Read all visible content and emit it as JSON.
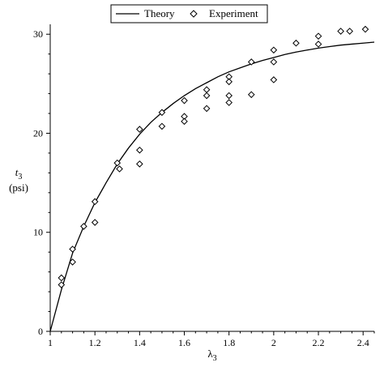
{
  "chart_data": {
    "type": "scatter",
    "xlabel": "λ",
    "xlabel_sub": "3",
    "ylabel": "t",
    "ylabel_sub": "3",
    "ylabel_unit": "(psi)",
    "xlim": [
      1.0,
      2.45
    ],
    "ylim": [
      0,
      31
    ],
    "x_ticks": [
      1,
      1.2,
      1.4,
      1.6,
      1.8,
      2,
      2.2,
      2.4
    ],
    "x_tick_labels": [
      "1",
      "1.2",
      "1.4",
      "1.6",
      "1.8",
      "2",
      "2.2",
      "2.4"
    ],
    "y_ticks": [
      0,
      10,
      20,
      30
    ],
    "y_tick_labels": [
      "0",
      "10",
      "20",
      "30"
    ],
    "grid": false,
    "legend_position": "top-center",
    "series": [
      {
        "name": "Theory",
        "kind": "line",
        "color": "#000000",
        "points": [
          [
            1.0,
            0.0
          ],
          [
            1.05,
            4.2
          ],
          [
            1.1,
            7.9
          ],
          [
            1.15,
            10.6
          ],
          [
            1.2,
            13.0
          ],
          [
            1.25,
            15.0
          ],
          [
            1.3,
            16.9
          ],
          [
            1.35,
            18.5
          ],
          [
            1.4,
            19.9
          ],
          [
            1.45,
            21.1
          ],
          [
            1.5,
            22.1
          ],
          [
            1.55,
            23.0
          ],
          [
            1.6,
            23.8
          ],
          [
            1.65,
            24.5
          ],
          [
            1.7,
            25.1
          ],
          [
            1.75,
            25.7
          ],
          [
            1.8,
            26.2
          ],
          [
            1.85,
            26.6
          ],
          [
            1.9,
            27.0
          ],
          [
            1.95,
            27.35
          ],
          [
            2.0,
            27.65
          ],
          [
            2.05,
            27.95
          ],
          [
            2.1,
            28.2
          ],
          [
            2.15,
            28.4
          ],
          [
            2.2,
            28.6
          ],
          [
            2.25,
            28.75
          ],
          [
            2.3,
            28.9
          ],
          [
            2.35,
            29.0
          ],
          [
            2.4,
            29.1
          ],
          [
            2.45,
            29.2
          ]
        ]
      },
      {
        "name": "Experiment",
        "kind": "scatter",
        "marker": "diamond",
        "color": "#000000",
        "points": [
          [
            1.05,
            5.4
          ],
          [
            1.05,
            4.7
          ],
          [
            1.1,
            8.3
          ],
          [
            1.1,
            7.0
          ],
          [
            1.15,
            10.6
          ],
          [
            1.2,
            13.1
          ],
          [
            1.2,
            11.0
          ],
          [
            1.3,
            17.0
          ],
          [
            1.31,
            16.4
          ],
          [
            1.4,
            20.4
          ],
          [
            1.4,
            18.3
          ],
          [
            1.4,
            16.9
          ],
          [
            1.5,
            22.1
          ],
          [
            1.5,
            20.7
          ],
          [
            1.6,
            23.3
          ],
          [
            1.6,
            21.7
          ],
          [
            1.6,
            21.2
          ],
          [
            1.7,
            24.4
          ],
          [
            1.7,
            23.8
          ],
          [
            1.7,
            22.5
          ],
          [
            1.8,
            25.7
          ],
          [
            1.8,
            25.2
          ],
          [
            1.8,
            23.8
          ],
          [
            1.8,
            23.1
          ],
          [
            1.9,
            27.2
          ],
          [
            1.9,
            23.9
          ],
          [
            2.0,
            28.4
          ],
          [
            2.0,
            27.2
          ],
          [
            2.0,
            25.4
          ],
          [
            2.1,
            29.1
          ],
          [
            2.2,
            29.8
          ],
          [
            2.2,
            29.0
          ],
          [
            2.3,
            30.3
          ],
          [
            2.34,
            30.3
          ],
          [
            2.41,
            30.5
          ]
        ]
      }
    ]
  }
}
